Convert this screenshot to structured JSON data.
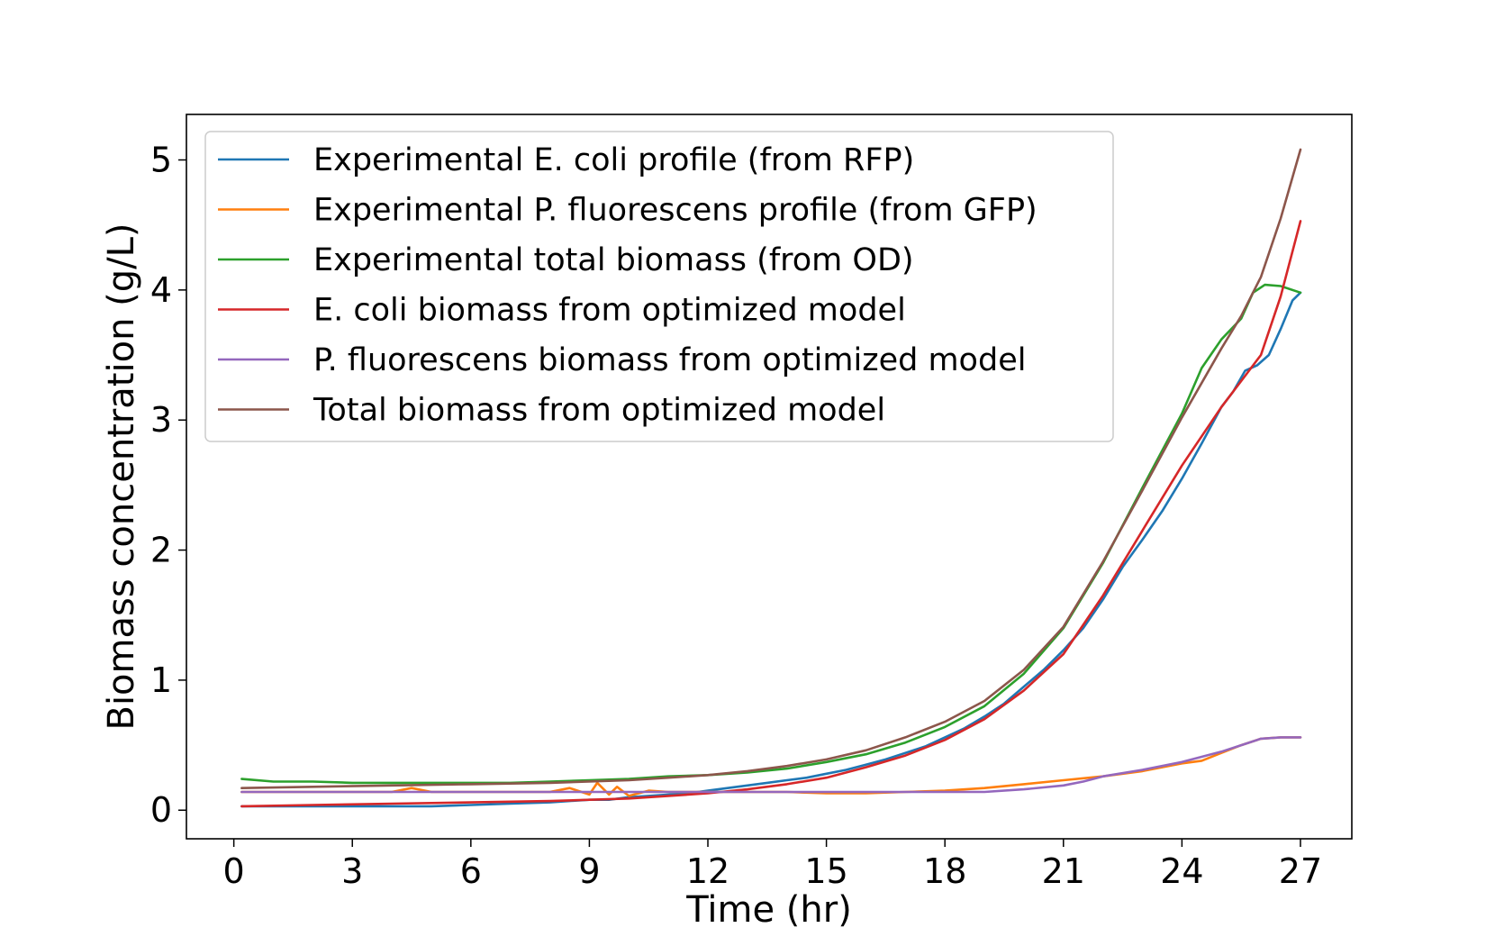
{
  "chart_data": {
    "type": "line",
    "title": "",
    "xlabel": "Time (hr)",
    "ylabel": "Biomass concentration (g/L)",
    "xlim": [
      -1.2,
      28.3
    ],
    "ylim": [
      -0.22,
      5.35
    ],
    "xticks": [
      0,
      3,
      6,
      9,
      12,
      15,
      18,
      21,
      24,
      27
    ],
    "yticks": [
      0,
      1,
      2,
      3,
      4,
      5
    ],
    "grid": false,
    "legend_position": "upper-left",
    "series": [
      {
        "name": "Experimental E. coli profile (from RFP)",
        "color": "#1f77b4",
        "x": [
          0.2,
          1,
          2,
          3,
          4,
          5,
          6,
          7,
          8,
          8.5,
          9,
          9.5,
          10,
          10.5,
          11,
          11.5,
          12,
          12.5,
          13,
          13.5,
          14,
          14.5,
          15,
          15.5,
          16,
          16.5,
          17,
          17.5,
          18,
          18.5,
          19,
          19.5,
          20,
          20.5,
          21,
          21.5,
          22,
          22.5,
          23,
          23.5,
          24,
          24.5,
          25,
          25.3,
          25.6,
          25.9,
          26.2,
          26.5,
          26.8,
          27
        ],
        "y": [
          0.03,
          0.03,
          0.03,
          0.03,
          0.03,
          0.03,
          0.04,
          0.05,
          0.06,
          0.07,
          0.08,
          0.08,
          0.1,
          0.11,
          0.12,
          0.13,
          0.15,
          0.17,
          0.19,
          0.21,
          0.23,
          0.25,
          0.28,
          0.31,
          0.35,
          0.39,
          0.44,
          0.49,
          0.56,
          0.63,
          0.72,
          0.82,
          0.95,
          1.08,
          1.23,
          1.4,
          1.62,
          1.87,
          2.08,
          2.3,
          2.55,
          2.82,
          3.1,
          3.22,
          3.38,
          3.42,
          3.5,
          3.7,
          3.92,
          3.98
        ]
      },
      {
        "name": "Experimental P. fluorescens profile (from GFP)",
        "color": "#ff7f0e",
        "x": [
          0.2,
          2,
          4,
          4.5,
          5,
          6,
          7,
          8,
          8.5,
          9,
          9.2,
          9.5,
          9.7,
          10,
          10.5,
          11,
          12,
          13,
          14,
          15,
          16,
          17,
          18,
          19,
          20,
          21,
          22,
          23,
          24,
          24.5,
          25,
          25.5,
          26,
          26.5,
          27
        ],
        "y": [
          0.14,
          0.14,
          0.14,
          0.17,
          0.14,
          0.14,
          0.14,
          0.14,
          0.17,
          0.12,
          0.21,
          0.12,
          0.18,
          0.11,
          0.15,
          0.14,
          0.14,
          0.14,
          0.14,
          0.13,
          0.13,
          0.14,
          0.15,
          0.17,
          0.2,
          0.23,
          0.26,
          0.3,
          0.36,
          0.38,
          0.44,
          0.5,
          0.55,
          0.56,
          0.56
        ]
      },
      {
        "name": "Experimental total biomass (from OD)",
        "color": "#2ca02c",
        "x": [
          0.2,
          1,
          2,
          3,
          4,
          5,
          6,
          7,
          8,
          9,
          10,
          11,
          12,
          13,
          14,
          15,
          16,
          17,
          18,
          19,
          20,
          21,
          22,
          23,
          24,
          24.5,
          25,
          25.5,
          25.8,
          26.1,
          26.5,
          27
        ],
        "y": [
          0.24,
          0.22,
          0.22,
          0.21,
          0.21,
          0.21,
          0.21,
          0.21,
          0.22,
          0.23,
          0.24,
          0.26,
          0.27,
          0.29,
          0.32,
          0.37,
          0.43,
          0.52,
          0.64,
          0.8,
          1.05,
          1.4,
          1.9,
          2.48,
          3.05,
          3.4,
          3.62,
          3.78,
          3.98,
          4.04,
          4.03,
          3.98
        ]
      },
      {
        "name": "E. coli biomass from optimized model",
        "color": "#d62728",
        "x": [
          0.2,
          2,
          4,
          6,
          8,
          10,
          11,
          12,
          13,
          14,
          15,
          16,
          17,
          18,
          19,
          20,
          21,
          22,
          23,
          24,
          25,
          25.5,
          26,
          26.5,
          27
        ],
        "y": [
          0.03,
          0.04,
          0.05,
          0.06,
          0.07,
          0.09,
          0.11,
          0.13,
          0.16,
          0.2,
          0.25,
          0.33,
          0.42,
          0.54,
          0.7,
          0.92,
          1.2,
          1.65,
          2.15,
          2.65,
          3.1,
          3.3,
          3.5,
          3.95,
          4.53
        ]
      },
      {
        "name": "P. fluorescens biomass from optimized model",
        "color": "#9467bd",
        "x": [
          0.2,
          3,
          6,
          9,
          12,
          15,
          18,
          19,
          20,
          21,
          21.5,
          22,
          23,
          24,
          25,
          25.5,
          26,
          26.5,
          27
        ],
        "y": [
          0.14,
          0.14,
          0.14,
          0.14,
          0.14,
          0.14,
          0.14,
          0.14,
          0.16,
          0.19,
          0.22,
          0.26,
          0.31,
          0.37,
          0.45,
          0.5,
          0.55,
          0.56,
          0.56
        ]
      },
      {
        "name": "Total biomass from optimized model",
        "color": "#8c564b",
        "x": [
          0.2,
          2,
          4,
          6,
          8,
          10,
          11,
          12,
          13,
          14,
          15,
          16,
          17,
          18,
          19,
          20,
          21,
          22,
          23,
          24,
          25,
          25.5,
          26,
          26.5,
          27
        ],
        "y": [
          0.17,
          0.18,
          0.19,
          0.2,
          0.21,
          0.23,
          0.25,
          0.27,
          0.3,
          0.34,
          0.39,
          0.46,
          0.56,
          0.68,
          0.84,
          1.08,
          1.41,
          1.91,
          2.46,
          3.02,
          3.55,
          3.8,
          4.1,
          4.55,
          5.08
        ]
      }
    ]
  }
}
